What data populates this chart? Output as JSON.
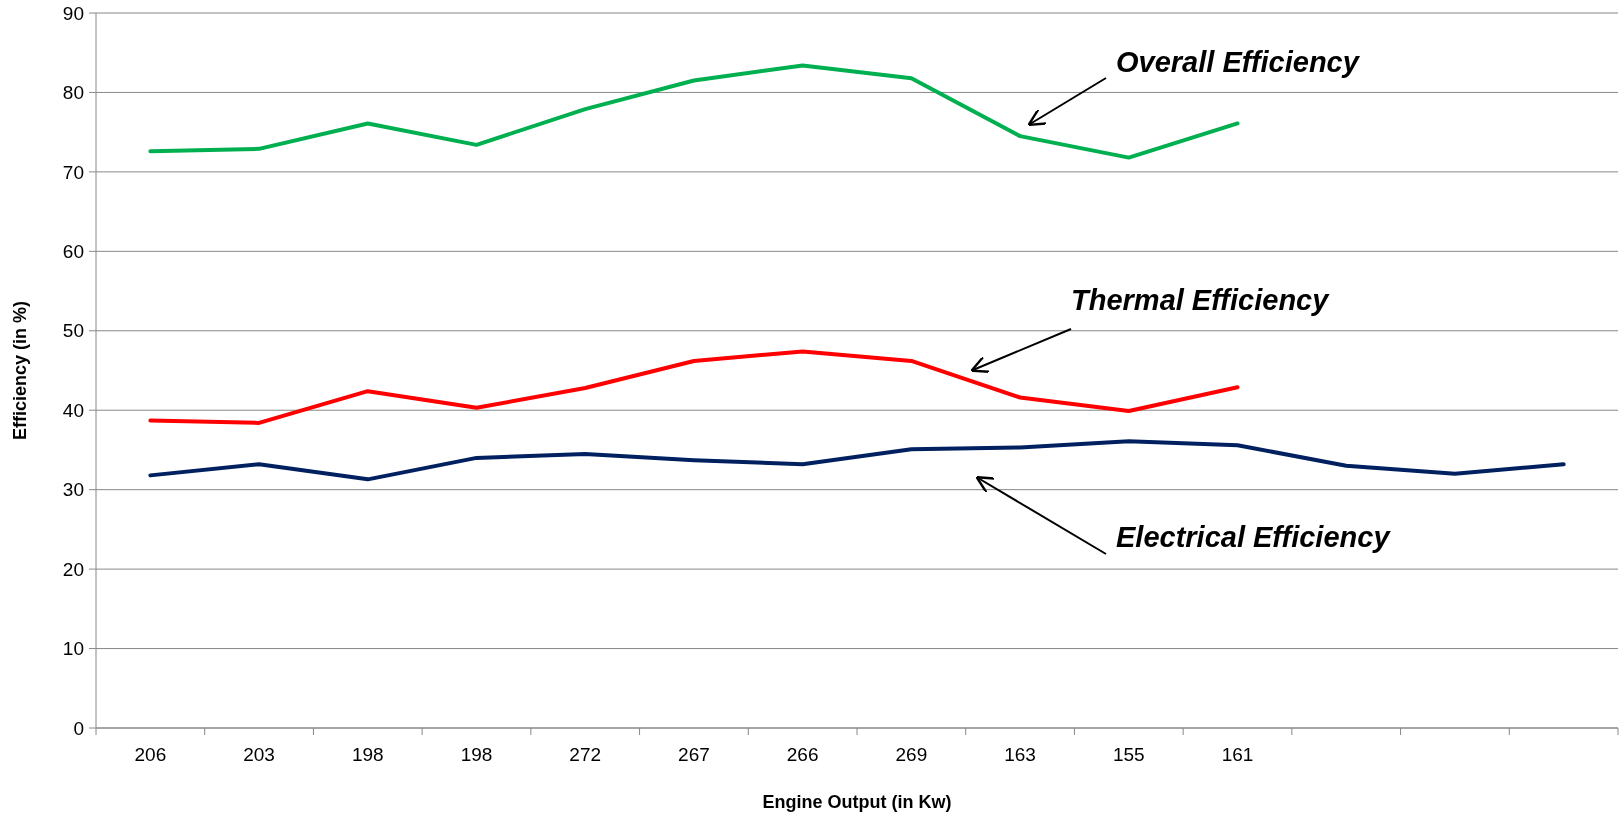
{
  "chart_data": {
    "type": "line",
    "xlabel": "Engine Output (in Kw)",
    "ylabel": "Efficiency (in %)",
    "categories": [
      "206",
      "203",
      "198",
      "198",
      "272",
      "267",
      "266",
      "269",
      "163",
      "155",
      "161",
      null,
      null,
      null
    ],
    "series": [
      {
        "name": "Overall Efficiency",
        "color": "#00b050",
        "values": [
          72.6,
          72.9,
          76.1,
          73.4,
          77.9,
          81.5,
          83.4,
          81.8,
          74.5,
          71.8,
          76.1,
          null,
          null,
          null
        ]
      },
      {
        "name": "Thermal Efficiency",
        "color": "#ff0000",
        "values": [
          38.7,
          38.4,
          42.4,
          40.3,
          42.8,
          46.2,
          47.4,
          46.2,
          41.6,
          39.9,
          42.9,
          null,
          null,
          null
        ]
      },
      {
        "name": "Electrical Efficiency",
        "color": "#002060",
        "values": [
          31.8,
          33.2,
          31.3,
          34.0,
          34.5,
          33.7,
          33.2,
          35.1,
          35.3,
          36.1,
          35.6,
          33.0,
          32.0,
          33.2
        ]
      }
    ],
    "ylim": [
      0,
      90
    ],
    "yticks": [
      0,
      10,
      20,
      30,
      40,
      50,
      60,
      70,
      80,
      90
    ],
    "grid": "y",
    "marker": "none",
    "line_style": "solid"
  }
}
